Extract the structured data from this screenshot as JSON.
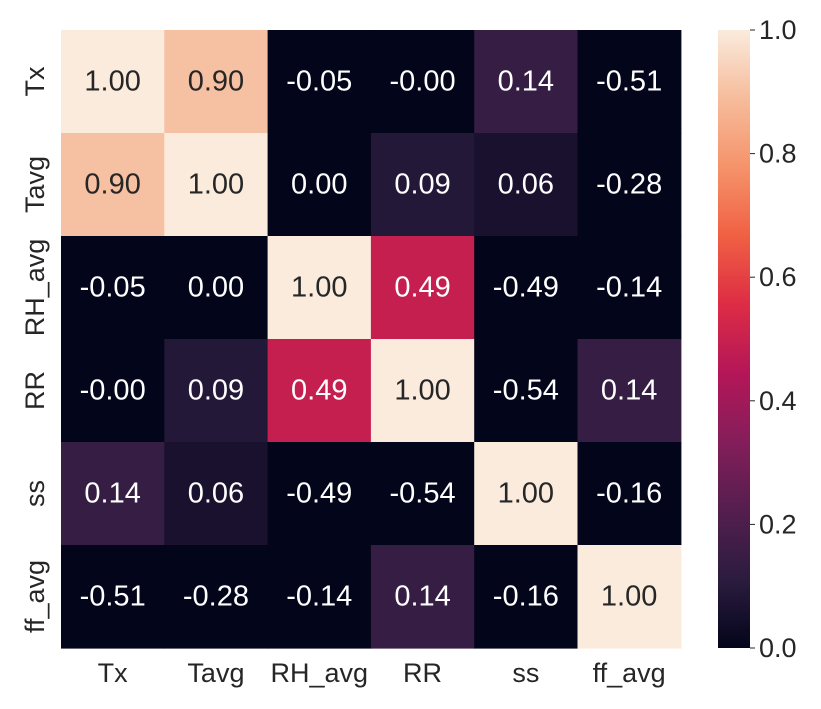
{
  "chart_data": {
    "type": "heatmap",
    "title": "",
    "xlabel": "",
    "ylabel": "",
    "x_categories": [
      "Tx",
      "Tavg",
      "RH_avg",
      "RR",
      "ss",
      "ff_avg"
    ],
    "y_categories": [
      "Tx",
      "Tavg",
      "RH_avg",
      "RR",
      "ss",
      "ff_avg"
    ],
    "values": [
      [
        1.0,
        0.9,
        -0.05,
        -0.0,
        0.14,
        -0.51
      ],
      [
        0.9,
        1.0,
        0.0,
        0.09,
        0.06,
        -0.28
      ],
      [
        -0.05,
        0.0,
        1.0,
        0.49,
        -0.49,
        -0.14
      ],
      [
        -0.0,
        0.09,
        0.49,
        1.0,
        -0.54,
        0.14
      ],
      [
        0.14,
        0.06,
        -0.49,
        -0.54,
        1.0,
        -0.16
      ],
      [
        -0.51,
        -0.28,
        -0.14,
        0.14,
        -0.16,
        1.0
      ]
    ],
    "cell_labels": [
      [
        "1.00",
        "0.90",
        "-0.05",
        "-0.00",
        "0.14",
        "-0.51"
      ],
      [
        "0.90",
        "1.00",
        "0.00",
        "0.09",
        "0.06",
        "-0.28"
      ],
      [
        "-0.05",
        "0.00",
        "1.00",
        "0.49",
        "-0.49",
        "-0.14"
      ],
      [
        "-0.00",
        "0.09",
        "0.49",
        "1.00",
        "-0.54",
        "0.14"
      ],
      [
        "0.14",
        "0.06",
        "-0.49",
        "-0.54",
        "1.00",
        "-0.16"
      ],
      [
        "-0.51",
        "-0.28",
        "-0.14",
        "0.14",
        "-0.16",
        "1.00"
      ]
    ],
    "colorbar": {
      "range": [
        0,
        1
      ],
      "ticks": [
        0.0,
        0.2,
        0.4,
        0.6,
        0.8,
        1.0
      ],
      "tick_labels": [
        "0.0",
        "0.2",
        "0.4",
        "0.6",
        "0.8",
        "1.0"
      ],
      "colormap": "rocket",
      "color_stops": [
        "#03051a",
        "#2b1c3f",
        "#541e4e",
        "#841e5a",
        "#b41658",
        "#dd2c45",
        "#f06043",
        "#f5936a",
        "#f6bc9b",
        "#faebdd"
      ]
    },
    "grid": false,
    "legend": "none"
  }
}
